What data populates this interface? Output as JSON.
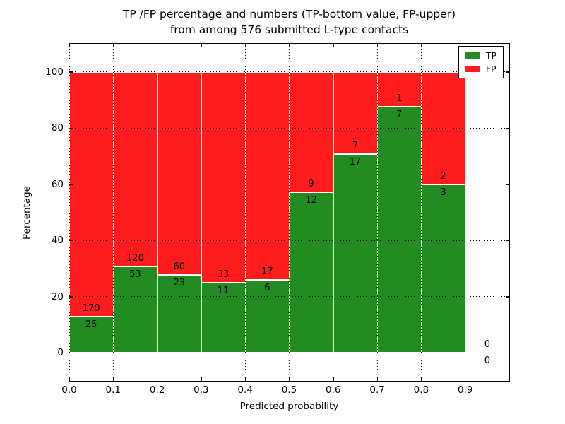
{
  "title": {
    "line1": "TP /FP percentage and numbers (TP-bottom value, FP-upper)",
    "line2": "from among 576 submitted L-type contacts"
  },
  "axes": {
    "xlabel": "Predicted probability",
    "ylabel": "Percentage",
    "xticks": [
      "0.0",
      "0.1",
      "0.2",
      "0.3",
      "0.4",
      "0.5",
      "0.6",
      "0.7",
      "0.8",
      "0.9"
    ],
    "yticks": [
      0,
      20,
      40,
      60,
      80,
      100
    ]
  },
  "legend": [
    {
      "label": "TP",
      "color": "#228b22"
    },
    {
      "label": "FP",
      "color": "#ff1c1c"
    }
  ],
  "chart_data": {
    "type": "bar",
    "stacked": true,
    "normalized": "percent of bin total",
    "title": "TP /FP percentage and numbers (TP-bottom value, FP-upper) from among 576 submitted L-type contacts",
    "xlabel": "Predicted probability",
    "ylabel": "Percentage",
    "total_submitted": 576,
    "bin_width": 0.1,
    "bin_starts": [
      0.0,
      0.1,
      0.2,
      0.3,
      0.4,
      0.5,
      0.6,
      0.7,
      0.8,
      0.9
    ],
    "categories": [
      "0.0-0.1",
      "0.1-0.2",
      "0.2-0.3",
      "0.3-0.4",
      "0.4-0.5",
      "0.5-0.6",
      "0.6-0.7",
      "0.7-0.8",
      "0.8-0.9",
      "0.9-1.0"
    ],
    "series": [
      {
        "name": "TP",
        "color": "#228b22",
        "counts": [
          25,
          53,
          23,
          11,
          6,
          12,
          17,
          7,
          3,
          0
        ]
      },
      {
        "name": "FP",
        "color": "#ff1c1c",
        "counts": [
          170,
          120,
          60,
          33,
          17,
          9,
          7,
          1,
          2,
          0
        ]
      }
    ],
    "tp_percent": [
      12.8,
      30.6,
      27.7,
      25.0,
      26.1,
      57.1,
      70.8,
      87.5,
      60.0,
      0.0
    ],
    "xlim": [
      0.0,
      1.0
    ],
    "ylim": [
      -10,
      110
    ],
    "grid": "dotted",
    "bar_edge_color": "#ffffff",
    "legend_position": "upper right"
  }
}
